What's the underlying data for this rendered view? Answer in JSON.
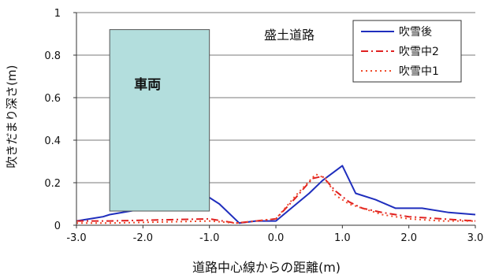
{
  "chart_data": {
    "type": "line",
    "title": "",
    "annotation": "盛土道路",
    "vehicle_label": "車両",
    "vehicle_range": {
      "x": [
        -2.5,
        -1.0
      ],
      "y": [
        0,
        0.92
      ]
    },
    "vehicle_color": "#b3dedd",
    "xlabel": "道路中心線からの距離(m)",
    "ylabel": "吹きだまり深さ(m)",
    "xlim": [
      -3.0,
      3.0
    ],
    "ylim": [
      0,
      1
    ],
    "xticks": [
      "-3.0",
      "-2.0",
      "-1.0",
      "0.0",
      "1.0",
      "2.0",
      "3.0"
    ],
    "xtick_values": [
      -3,
      -2,
      -1,
      0,
      1,
      2,
      3
    ],
    "yticks": [
      "0",
      "0.2",
      "0.4",
      "0.6",
      "0.8",
      "1"
    ],
    "ytick_values": [
      0,
      0.2,
      0.4,
      0.6,
      0.8,
      1
    ],
    "grid": "horizontal",
    "legend_position": "top-right",
    "series": [
      {
        "name": "吹雪後",
        "color": "#1f2ebd",
        "dash": "solid",
        "x": [
          -3.0,
          -2.6,
          -2.5,
          -1.0,
          -0.85,
          -0.55,
          -0.3,
          0.0,
          0.5,
          0.7,
          1.0,
          1.2,
          1.5,
          1.8,
          2.2,
          2.6,
          3.0
        ],
        "y": [
          0.02,
          0.04,
          0.05,
          0.13,
          0.1,
          0.01,
          0.02,
          0.02,
          0.15,
          0.21,
          0.28,
          0.15,
          0.12,
          0.08,
          0.08,
          0.06,
          0.05
        ]
      },
      {
        "name": "吹雪中2",
        "color": "#e02020",
        "dash": "dashdot",
        "x": [
          -3.0,
          -2.5,
          -1.0,
          -0.6,
          -0.3,
          0.0,
          0.3,
          0.55,
          0.7,
          0.9,
          1.1,
          1.3,
          1.6,
          2.0,
          2.5,
          3.0
        ],
        "y": [
          0.02,
          0.02,
          0.03,
          0.01,
          0.02,
          0.03,
          0.13,
          0.22,
          0.23,
          0.16,
          0.11,
          0.08,
          0.06,
          0.04,
          0.03,
          0.02
        ]
      },
      {
        "name": "吹雪中1",
        "color": "#f04a2a",
        "dash": "dotted",
        "x": [
          -3.0,
          -2.5,
          -1.0,
          -0.6,
          -0.3,
          0.0,
          0.3,
          0.6,
          0.75,
          0.9,
          1.1,
          1.3,
          1.6,
          2.0,
          2.5,
          3.0
        ],
        "y": [
          0.01,
          0.01,
          0.02,
          0.01,
          0.02,
          0.03,
          0.14,
          0.24,
          0.22,
          0.14,
          0.1,
          0.08,
          0.05,
          0.03,
          0.02,
          0.02
        ]
      }
    ]
  }
}
